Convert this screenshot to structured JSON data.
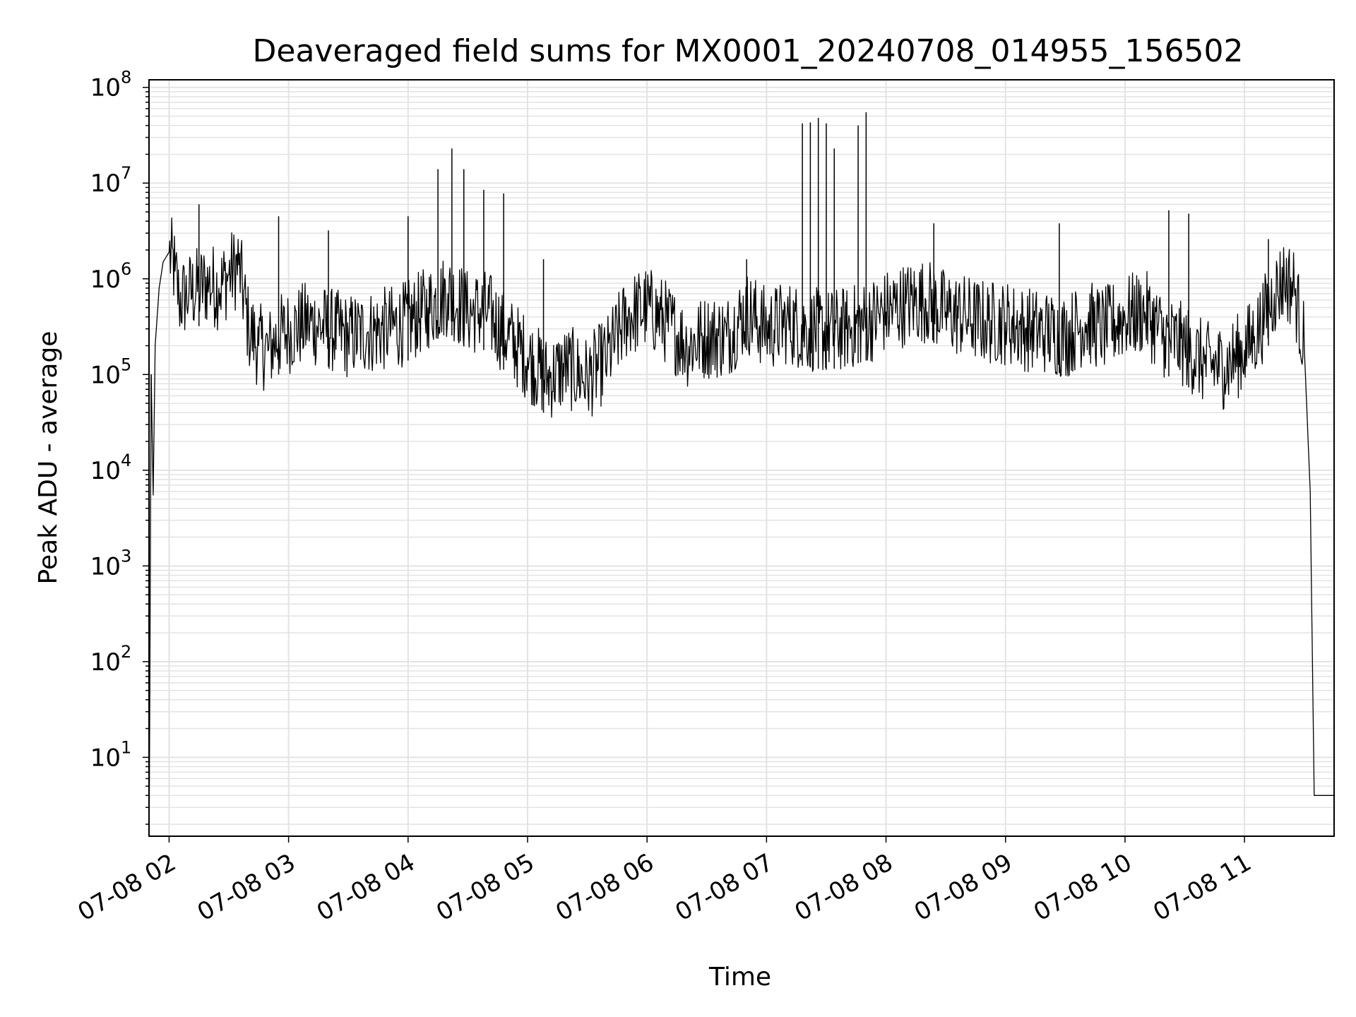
{
  "chart_data": {
    "type": "line",
    "title": "Deaveraged field sums for MX0001_20240708_014955_156502",
    "xlabel": "Time",
    "ylabel": "Peak ADU - average",
    "yscale": "log",
    "grid": true,
    "line_color": "#000000",
    "grid_color": "#e3e3e3",
    "xlim": [
      "07-08 01:49:55",
      "07-08 11:45:00"
    ],
    "ylim": [
      1.5,
      120000000
    ],
    "x_ticks": [
      "07-08 02",
      "07-08 03",
      "07-08 04",
      "07-08 05",
      "07-08 06",
      "07-08 07",
      "07-08 08",
      "07-08 09",
      "07-08 10",
      "07-08 11"
    ],
    "y_ticks": [
      {
        "base": "10",
        "exp": "1"
      },
      {
        "base": "10",
        "exp": "2"
      },
      {
        "base": "10",
        "exp": "3"
      },
      {
        "base": "10",
        "exp": "4"
      },
      {
        "base": "10",
        "exp": "5"
      },
      {
        "base": "10",
        "exp": "6"
      },
      {
        "base": "10",
        "exp": "7"
      },
      {
        "base": "10",
        "exp": "8"
      }
    ],
    "series": [
      {
        "x": [
          "07-08 01:50",
          "07-08 01:51",
          "07-08 01:52",
          "07-08 01:53",
          "07-08 01:55",
          "07-08 01:57",
          "07-08 02:00",
          "07-08 02:03",
          "07-08 02:05",
          "07-08 02:10",
          "07-08 02:15",
          "07-08 02:20",
          "07-08 02:25",
          "07-08 02:30",
          "07-08 02:35",
          "07-08 02:40",
          "07-08 02:45",
          "07-08 02:50",
          "07-08 02:55",
          "07-08 03:00",
          "07-08 03:10",
          "07-08 03:20",
          "07-08 03:30",
          "07-08 03:40",
          "07-08 03:50",
          "07-08 04:00",
          "07-08 04:10",
          "07-08 04:20",
          "07-08 04:30",
          "07-08 04:40",
          "07-08 04:50",
          "07-08 05:00",
          "07-08 05:10",
          "07-08 05:20",
          "07-08 05:30",
          "07-08 05:40",
          "07-08 05:50",
          "07-08 06:00",
          "07-08 06:10",
          "07-08 06:20",
          "07-08 06:30",
          "07-08 06:40",
          "07-08 06:50",
          "07-08 07:00",
          "07-08 07:10",
          "07-08 07:20",
          "07-08 07:30",
          "07-08 07:40",
          "07-08 07:50",
          "07-08 08:00",
          "07-08 08:10",
          "07-08 08:20",
          "07-08 08:30",
          "07-08 08:40",
          "07-08 08:50",
          "07-08 09:00",
          "07-08 09:10",
          "07-08 09:20",
          "07-08 09:30",
          "07-08 09:40",
          "07-08 09:50",
          "07-08 10:00",
          "07-08 10:10",
          "07-08 10:20",
          "07-08 10:30",
          "07-08 10:40",
          "07-08 10:50",
          "07-08 11:00",
          "07-08 11:05",
          "07-08 11:10",
          "07-08 11:15",
          "07-08 11:20",
          "07-08 11:25",
          "07-08 11:30",
          "07-08 11:33",
          "07-08 11:35",
          "07-08 11:36",
          "07-08 11:40",
          "07-08 11:45"
        ],
        "y": [
          1.5,
          100000,
          5500,
          200000,
          800000,
          1500000,
          1900000,
          1200000,
          600000,
          700000,
          800000,
          900000,
          800000,
          1100000,
          1400000,
          300000,
          200000,
          180000,
          250000,
          280000,
          350000,
          300000,
          250000,
          280000,
          300000,
          350000,
          500000,
          700000,
          450000,
          450000,
          250000,
          150000,
          90000,
          120000,
          90000,
          150000,
          400000,
          500000,
          350000,
          200000,
          250000,
          250000,
          450000,
          300000,
          350000,
          300000,
          280000,
          300000,
          350000,
          450000,
          550000,
          600000,
          450000,
          400000,
          350000,
          350000,
          300000,
          280000,
          250000,
          350000,
          300000,
          400000,
          450000,
          250000,
          200000,
          130000,
          120000,
          180000,
          250000,
          400000,
          700000,
          1000000,
          800000,
          200000,
          6000,
          4,
          4,
          4,
          4
        ]
      }
    ],
    "spikes": [
      {
        "x": "07-08 01:51",
        "y": 100000
      },
      {
        "x": "07-08 02:15",
        "y": 6000000
      },
      {
        "x": "07-08 02:55",
        "y": 4500000
      },
      {
        "x": "07-08 03:20",
        "y": 3200000
      },
      {
        "x": "07-08 04:00",
        "y": 4500000
      },
      {
        "x": "07-08 04:15",
        "y": 14000000
      },
      {
        "x": "07-08 04:22",
        "y": 23000000
      },
      {
        "x": "07-08 04:28",
        "y": 14000000
      },
      {
        "x": "07-08 04:38",
        "y": 8500000
      },
      {
        "x": "07-08 04:48",
        "y": 7800000
      },
      {
        "x": "07-08 05:08",
        "y": 1600000
      },
      {
        "x": "07-08 06:50",
        "y": 1600000
      },
      {
        "x": "07-08 07:18",
        "y": 42000000
      },
      {
        "x": "07-08 07:22",
        "y": 43000000
      },
      {
        "x": "07-08 07:26",
        "y": 48000000
      },
      {
        "x": "07-08 07:30",
        "y": 42000000
      },
      {
        "x": "07-08 07:34",
        "y": 23000000
      },
      {
        "x": "07-08 07:46",
        "y": 40000000
      },
      {
        "x": "07-08 07:50",
        "y": 55000000
      },
      {
        "x": "07-08 08:24",
        "y": 3800000
      },
      {
        "x": "07-08 09:27",
        "y": 3800000
      },
      {
        "x": "07-08 10:22",
        "y": 5200000
      },
      {
        "x": "07-08 10:32",
        "y": 4800000
      },
      {
        "x": "07-08 11:12",
        "y": 2600000
      }
    ]
  }
}
